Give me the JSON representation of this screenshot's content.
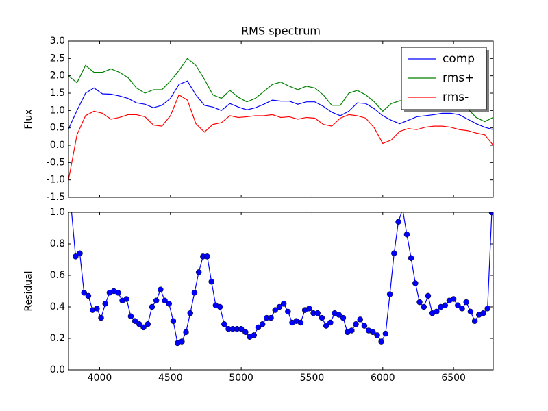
{
  "chart_data": [
    {
      "type": "line",
      "title": "RMS spectrum",
      "ylabel": "Flux",
      "x": [
        3780,
        3840,
        3900,
        3960,
        4020,
        4080,
        4140,
        4200,
        4260,
        4320,
        4380,
        4440,
        4500,
        4560,
        4620,
        4680,
        4740,
        4800,
        4860,
        4920,
        4980,
        5040,
        5100,
        5160,
        5220,
        5280,
        5340,
        5400,
        5460,
        5520,
        5580,
        5640,
        5700,
        5760,
        5820,
        5880,
        5940,
        6000,
        6060,
        6120,
        6180,
        6240,
        6300,
        6360,
        6420,
        6480,
        6540,
        6600,
        6660,
        6720,
        6780
      ],
      "series": [
        {
          "name": "comp",
          "color": "#0000ff",
          "values": [
            0.47,
            1.0,
            1.5,
            1.65,
            1.48,
            1.47,
            1.42,
            1.35,
            1.22,
            1.18,
            1.08,
            1.15,
            1.35,
            1.75,
            1.85,
            1.45,
            1.15,
            1.1,
            1.0,
            1.2,
            1.1,
            1.02,
            1.08,
            1.18,
            1.3,
            1.27,
            1.27,
            1.18,
            1.25,
            1.25,
            1.12,
            0.95,
            0.85,
            0.98,
            1.22,
            1.2,
            1.05,
            0.85,
            0.72,
            0.62,
            0.72,
            0.82,
            0.85,
            0.88,
            0.92,
            0.92,
            0.88,
            0.75,
            0.62,
            0.52,
            0.45
          ]
        },
        {
          "name": "rms+",
          "color": "#008000",
          "values": [
            2.0,
            1.8,
            2.3,
            2.1,
            2.1,
            2.2,
            2.1,
            1.95,
            1.65,
            1.5,
            1.6,
            1.6,
            1.85,
            2.15,
            2.5,
            2.3,
            1.9,
            1.45,
            1.35,
            1.58,
            1.38,
            1.25,
            1.35,
            1.55,
            1.75,
            1.82,
            1.7,
            1.6,
            1.7,
            1.65,
            1.45,
            1.15,
            1.15,
            1.5,
            1.58,
            1.45,
            1.25,
            0.98,
            1.2,
            1.28,
            1.3,
            1.3,
            1.3,
            1.3,
            1.3,
            1.3,
            1.2,
            1.05,
            0.8,
            0.68,
            0.8
          ]
        },
        {
          "name": "rms-",
          "color": "#ff0000",
          "values": [
            -1.0,
            0.3,
            0.85,
            0.98,
            0.92,
            0.75,
            0.8,
            0.88,
            0.88,
            0.82,
            0.58,
            0.55,
            0.85,
            1.45,
            1.3,
            0.62,
            0.38,
            0.6,
            0.65,
            0.85,
            0.8,
            0.82,
            0.85,
            0.85,
            0.88,
            0.8,
            0.82,
            0.75,
            0.8,
            0.78,
            0.6,
            0.55,
            0.78,
            0.88,
            0.85,
            0.78,
            0.5,
            0.05,
            0.15,
            0.4,
            0.48,
            0.45,
            0.52,
            0.55,
            0.55,
            0.52,
            0.45,
            0.42,
            0.35,
            0.3,
            0.0
          ]
        }
      ],
      "xlim": [
        3780,
        6780
      ],
      "xticks": [
        4000,
        4500,
        5000,
        5500,
        6000,
        6500
      ],
      "ylim": [
        -1.5,
        3.0
      ],
      "yticks": [
        {
          "value": -1.5,
          "label": "-1.5"
        },
        {
          "value": -1.0,
          "label": "-1.0"
        },
        {
          "value": -0.5,
          "label": "-0.5"
        },
        {
          "value": 0,
          "label": "0.0"
        },
        {
          "value": 0.5,
          "label": "0.5"
        },
        {
          "value": 1.0,
          "label": "1.0"
        },
        {
          "value": 1.5,
          "label": "1.5"
        },
        {
          "value": 2.0,
          "label": "2.0"
        },
        {
          "value": 2.5,
          "label": "2.5"
        },
        {
          "value": 3.0,
          "label": "3.0"
        }
      ],
      "legend": "upper right"
    },
    {
      "type": "line",
      "ylabel": "Residual",
      "color": "#0000ff",
      "marker": "o",
      "x": [
        3800,
        3830,
        3860,
        3890,
        3920,
        3950,
        3980,
        4010,
        4040,
        4070,
        4100,
        4130,
        4160,
        4190,
        4220,
        4250,
        4280,
        4310,
        4340,
        4370,
        4400,
        4430,
        4460,
        4490,
        4520,
        4550,
        4580,
        4610,
        4640,
        4670,
        4700,
        4730,
        4760,
        4790,
        4820,
        4850,
        4880,
        4910,
        4940,
        4970,
        5000,
        5030,
        5060,
        5090,
        5120,
        5150,
        5180,
        5210,
        5240,
        5270,
        5300,
        5330,
        5360,
        5390,
        5420,
        5450,
        5480,
        5510,
        5540,
        5570,
        5600,
        5630,
        5660,
        5690,
        5720,
        5750,
        5780,
        5810,
        5840,
        5870,
        5900,
        5930,
        5960,
        5990,
        6020,
        6050,
        6080,
        6110,
        6140,
        6170,
        6200,
        6230,
        6260,
        6290,
        6320,
        6350,
        6380,
        6410,
        6440,
        6470,
        6500,
        6530,
        6560,
        6590,
        6620,
        6650,
        6680,
        6710,
        6740,
        6770
      ],
      "values": [
        1.02,
        0.72,
        0.74,
        0.49,
        0.47,
        0.38,
        0.39,
        0.33,
        0.42,
        0.49,
        0.5,
        0.49,
        0.44,
        0.45,
        0.34,
        0.31,
        0.29,
        0.27,
        0.29,
        0.4,
        0.44,
        0.51,
        0.44,
        0.42,
        0.31,
        0.17,
        0.18,
        0.24,
        0.36,
        0.49,
        0.62,
        0.72,
        0.72,
        0.56,
        0.41,
        0.4,
        0.29,
        0.26,
        0.26,
        0.26,
        0.26,
        0.24,
        0.21,
        0.22,
        0.27,
        0.29,
        0.33,
        0.33,
        0.38,
        0.4,
        0.42,
        0.37,
        0.3,
        0.31,
        0.3,
        0.38,
        0.39,
        0.36,
        0.36,
        0.33,
        0.28,
        0.3,
        0.36,
        0.35,
        0.33,
        0.24,
        0.25,
        0.29,
        0.32,
        0.28,
        0.25,
        0.24,
        0.22,
        0.18,
        0.23,
        0.48,
        0.74,
        0.94,
        1.02,
        0.86,
        0.71,
        0.55,
        0.43,
        0.4,
        0.47,
        0.36,
        0.37,
        0.4,
        0.41,
        0.44,
        0.45,
        0.41,
        0.39,
        0.43,
        0.37,
        0.31,
        0.35,
        0.36,
        0.39,
        1.0
      ],
      "xlim": [
        3780,
        6780
      ],
      "xticks": [
        4000,
        4500,
        5000,
        5500,
        6000,
        6500
      ],
      "ylim": [
        0,
        1.0
      ],
      "yticks": [
        {
          "value": 0,
          "label": "0.0"
        },
        {
          "value": 0.2,
          "label": "0.2"
        },
        {
          "value": 0.4,
          "label": "0.4"
        },
        {
          "value": 0.6,
          "label": "0.6"
        },
        {
          "value": 0.8,
          "label": "0.8"
        },
        {
          "value": 1.0,
          "label": "1.0"
        }
      ]
    }
  ]
}
